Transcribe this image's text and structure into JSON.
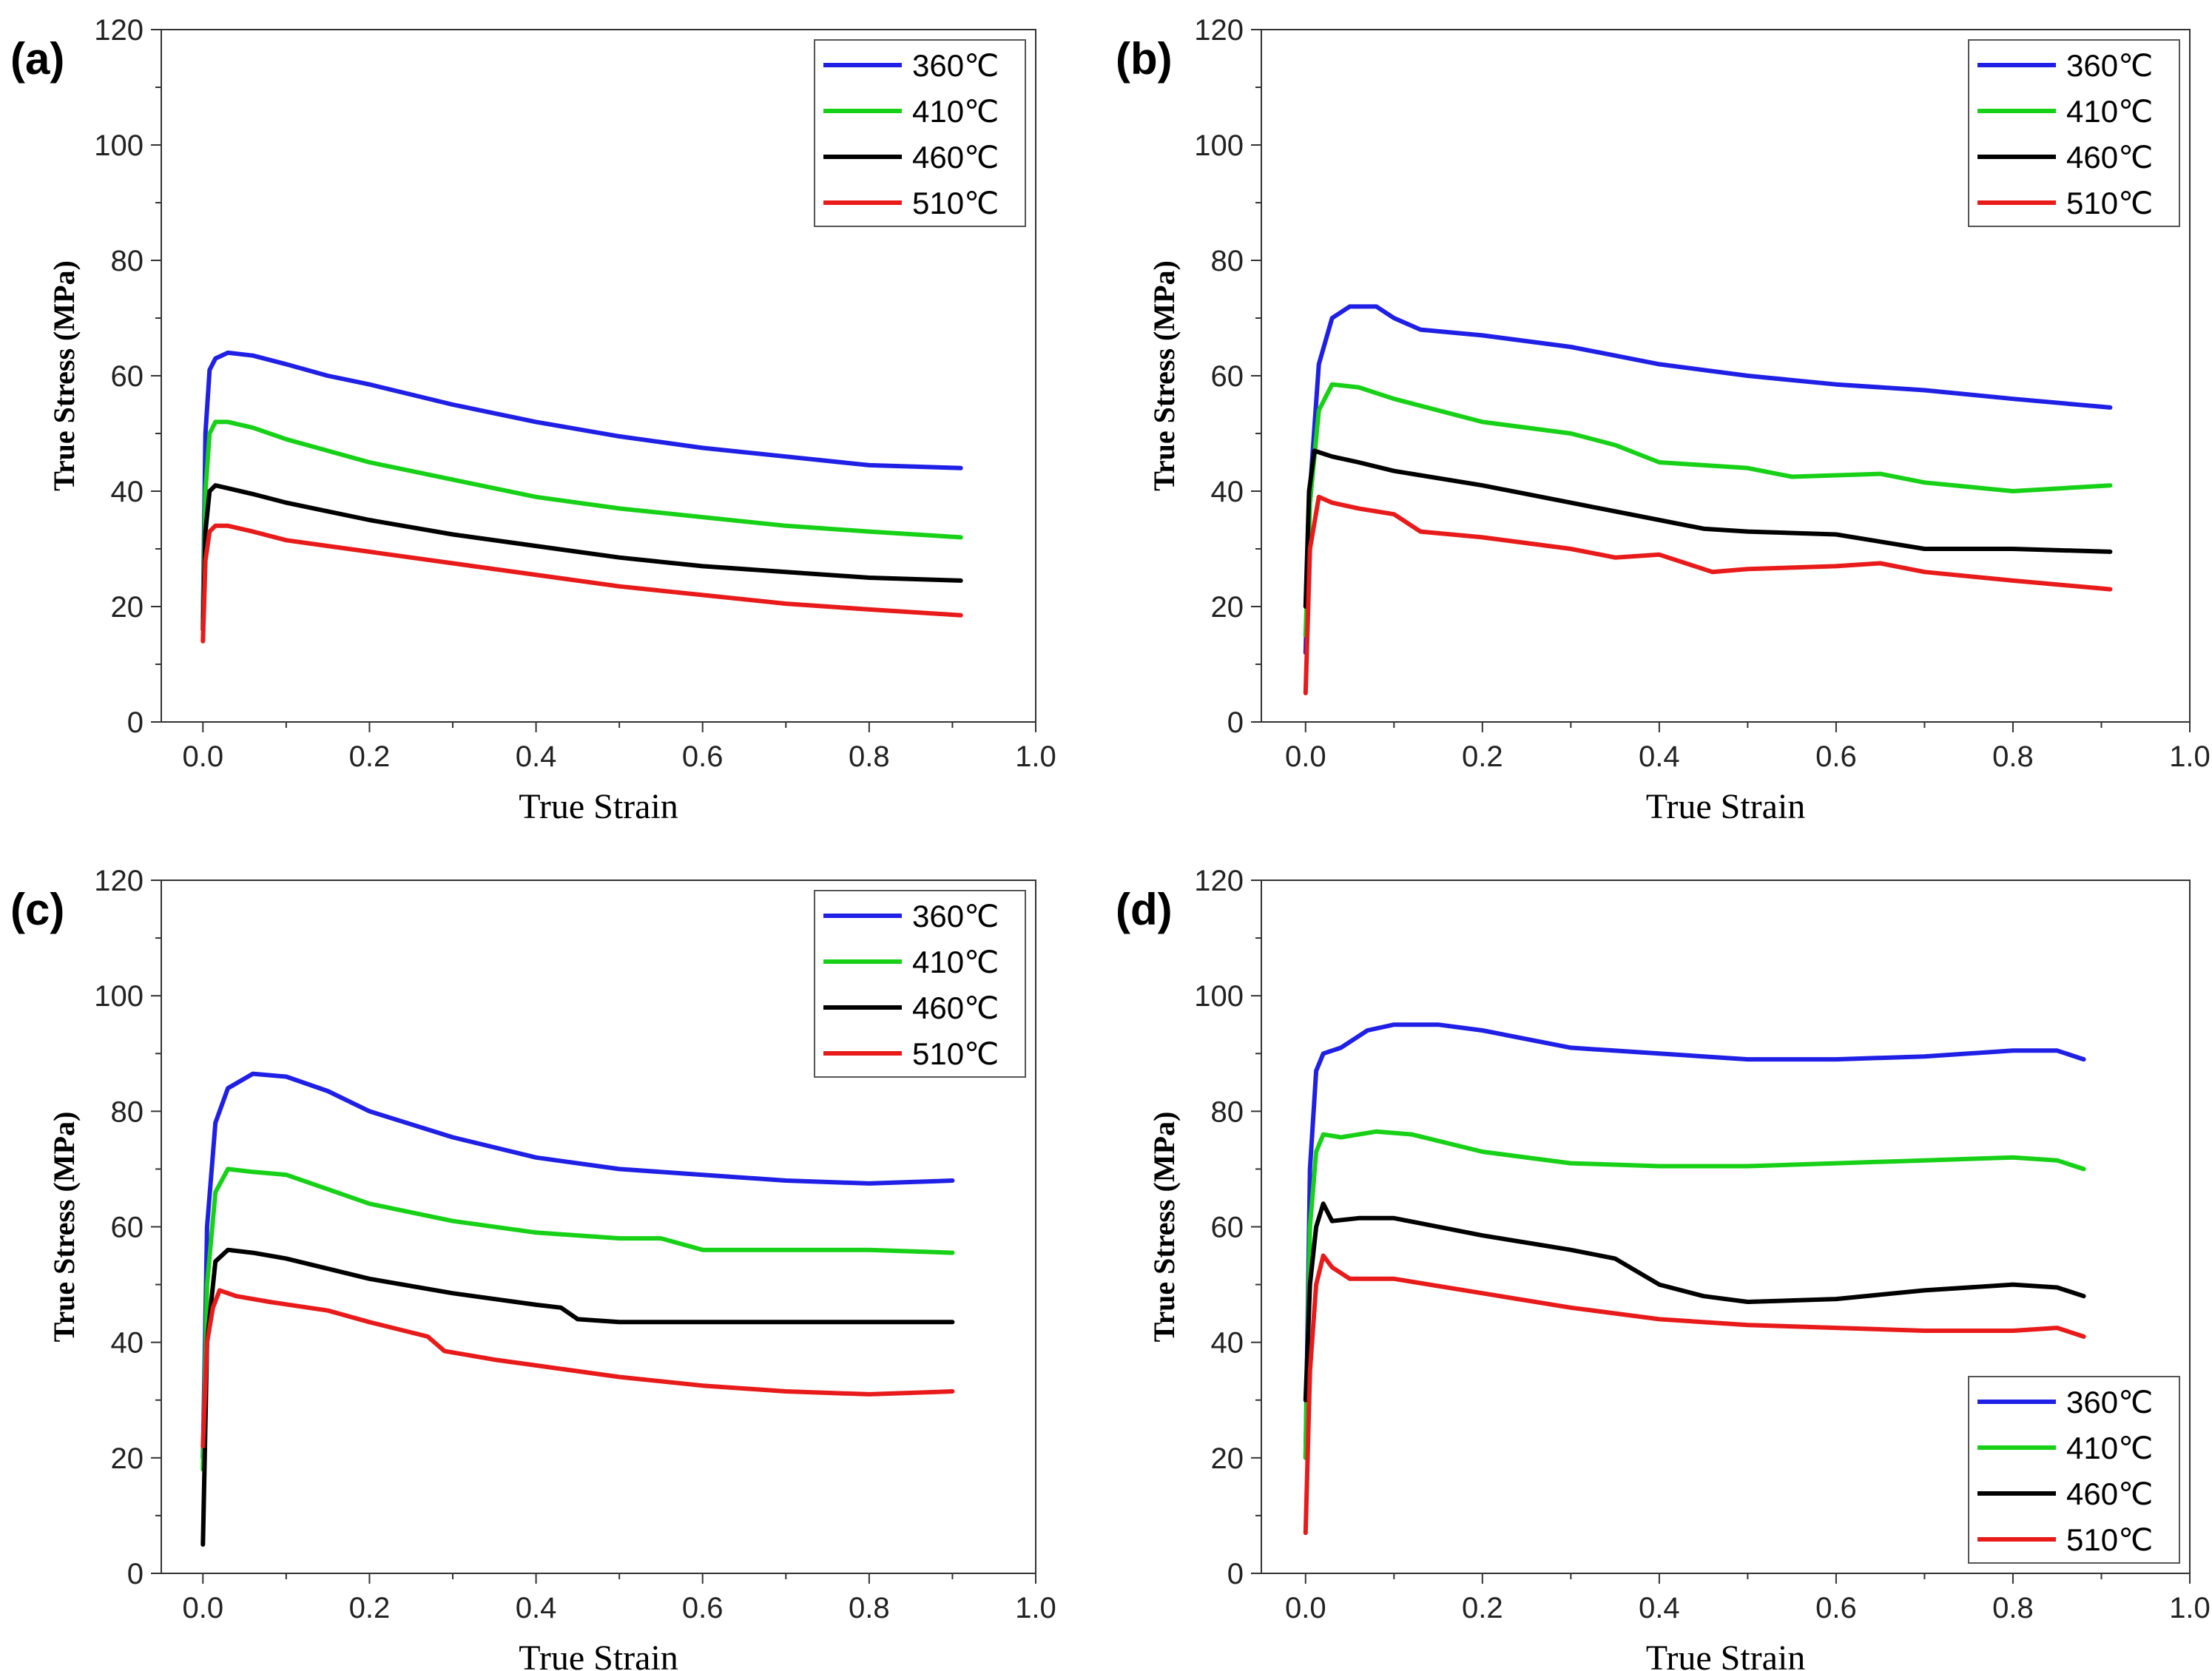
{
  "chart_data": [
    {
      "type": "line",
      "panel_label": "(a)",
      "xlabel": "True Strain",
      "ylabel": "True Stress (MPa)",
      "xlim": [
        -0.05,
        1.0
      ],
      "ylim": [
        0,
        120
      ],
      "xticks": [
        "0.0",
        "0.2",
        "0.4",
        "0.6",
        "0.8",
        "1.0"
      ],
      "yticks": [
        "0",
        "20",
        "40",
        "60",
        "80",
        "100",
        "120"
      ],
      "legend_position": "top-right",
      "series": [
        {
          "name": "360℃",
          "color": "#1f1fe6",
          "x": [
            0,
            0.003,
            0.008,
            0.015,
            0.03,
            0.06,
            0.1,
            0.15,
            0.2,
            0.3,
            0.4,
            0.5,
            0.6,
            0.7,
            0.8,
            0.91
          ],
          "y": [
            18,
            50,
            61,
            63,
            64,
            63.5,
            62,
            60,
            58.5,
            55,
            52,
            49.5,
            47.5,
            46,
            44.5,
            44
          ]
        },
        {
          "name": "410℃",
          "color": "#17d117",
          "x": [
            0,
            0.003,
            0.008,
            0.015,
            0.03,
            0.06,
            0.1,
            0.15,
            0.2,
            0.3,
            0.4,
            0.5,
            0.6,
            0.7,
            0.8,
            0.91
          ],
          "y": [
            17,
            40,
            50,
            52,
            52,
            51,
            49,
            47,
            45,
            42,
            39,
            37,
            35.5,
            34,
            33,
            32
          ]
        },
        {
          "name": "460℃",
          "color": "#000000",
          "x": [
            0,
            0.003,
            0.008,
            0.015,
            0.03,
            0.06,
            0.1,
            0.15,
            0.2,
            0.3,
            0.4,
            0.5,
            0.6,
            0.7,
            0.8,
            0.91
          ],
          "y": [
            16,
            33,
            40,
            41,
            40.5,
            39.5,
            38,
            36.5,
            35,
            32.5,
            30.5,
            28.5,
            27,
            26,
            25,
            24.5
          ]
        },
        {
          "name": "510℃",
          "color": "#e81a1a",
          "x": [
            0,
            0.003,
            0.008,
            0.015,
            0.03,
            0.06,
            0.1,
            0.15,
            0.2,
            0.3,
            0.4,
            0.5,
            0.6,
            0.7,
            0.8,
            0.91
          ],
          "y": [
            14,
            28,
            33,
            34,
            34,
            33,
            31.5,
            30.5,
            29.5,
            27.5,
            25.5,
            23.5,
            22,
            20.5,
            19.5,
            18.5
          ]
        }
      ]
    },
    {
      "type": "line",
      "panel_label": "(b)",
      "xlabel": "True Strain",
      "ylabel": "True Stress (MPa)",
      "xlim": [
        -0.05,
        1.0
      ],
      "ylim": [
        0,
        120
      ],
      "xticks": [
        "0.0",
        "0.2",
        "0.4",
        "0.6",
        "0.8",
        "1.0"
      ],
      "yticks": [
        "0",
        "20",
        "40",
        "60",
        "80",
        "100",
        "120"
      ],
      "legend_position": "top-right",
      "series": [
        {
          "name": "360℃",
          "color": "#1f1fe6",
          "x": [
            0,
            0.005,
            0.015,
            0.03,
            0.05,
            0.08,
            0.1,
            0.13,
            0.2,
            0.3,
            0.4,
            0.5,
            0.6,
            0.7,
            0.8,
            0.91
          ],
          "y": [
            12,
            40,
            62,
            70,
            72,
            72,
            70,
            68,
            67,
            65,
            62,
            60,
            58.5,
            57.5,
            56,
            54.5
          ]
        },
        {
          "name": "410℃",
          "color": "#17d117",
          "x": [
            0,
            0.005,
            0.015,
            0.03,
            0.06,
            0.1,
            0.2,
            0.3,
            0.35,
            0.4,
            0.45,
            0.5,
            0.55,
            0.65,
            0.7,
            0.8,
            0.91
          ],
          "y": [
            15,
            38,
            54,
            58.5,
            58,
            56,
            52,
            50,
            48,
            45,
            44.5,
            44,
            42.5,
            43,
            41.5,
            40,
            41
          ]
        },
        {
          "name": "460℃",
          "color": "#000000",
          "x": [
            0,
            0.004,
            0.01,
            0.03,
            0.06,
            0.1,
            0.2,
            0.3,
            0.4,
            0.45,
            0.5,
            0.6,
            0.7,
            0.8,
            0.91
          ],
          "y": [
            20,
            40,
            47,
            46,
            45,
            43.5,
            41,
            38,
            35,
            33.5,
            33,
            32.5,
            30,
            30,
            29.5
          ]
        },
        {
          "name": "510℃",
          "color": "#e81a1a",
          "x": [
            0,
            0.005,
            0.015,
            0.03,
            0.06,
            0.1,
            0.13,
            0.2,
            0.3,
            0.35,
            0.4,
            0.46,
            0.5,
            0.6,
            0.65,
            0.7,
            0.8,
            0.91
          ],
          "y": [
            5,
            30,
            39,
            38,
            37,
            36,
            33,
            32,
            30,
            28.5,
            29,
            26,
            26.5,
            27,
            27.5,
            26,
            24.5,
            23
          ]
        }
      ]
    },
    {
      "type": "line",
      "panel_label": "(c)",
      "xlabel": "True Strain",
      "ylabel": "True Stress (MPa)",
      "xlim": [
        -0.05,
        1.0
      ],
      "ylim": [
        0,
        120
      ],
      "xticks": [
        "0.0",
        "0.2",
        "0.4",
        "0.6",
        "0.8",
        "1.0"
      ],
      "yticks": [
        "0",
        "20",
        "40",
        "60",
        "80",
        "100",
        "120"
      ],
      "legend_position": "top-right",
      "series": [
        {
          "name": "360℃",
          "color": "#1f1fe6",
          "x": [
            0,
            0.005,
            0.015,
            0.03,
            0.06,
            0.1,
            0.15,
            0.2,
            0.3,
            0.4,
            0.5,
            0.6,
            0.7,
            0.8,
            0.9
          ],
          "y": [
            20,
            60,
            78,
            84,
            86.5,
            86,
            83.5,
            80,
            75.5,
            72,
            70,
            69,
            68,
            67.5,
            68
          ]
        },
        {
          "name": "410℃",
          "color": "#17d117",
          "x": [
            0,
            0.005,
            0.015,
            0.03,
            0.06,
            0.1,
            0.15,
            0.2,
            0.3,
            0.4,
            0.5,
            0.55,
            0.6,
            0.7,
            0.8,
            0.9
          ],
          "y": [
            18,
            50,
            66,
            70,
            69.5,
            69,
            66.5,
            64,
            61,
            59,
            58,
            58,
            56,
            56,
            56,
            55.5
          ]
        },
        {
          "name": "460℃",
          "color": "#000000",
          "x": [
            0,
            0.005,
            0.015,
            0.03,
            0.06,
            0.1,
            0.2,
            0.3,
            0.4,
            0.43,
            0.45,
            0.5,
            0.6,
            0.7,
            0.8,
            0.9
          ],
          "y": [
            5,
            40,
            54,
            56,
            55.5,
            54.5,
            51,
            48.5,
            46.5,
            46,
            44,
            43.5,
            43.5,
            43.5,
            43.5,
            43.5
          ]
        },
        {
          "name": "510℃",
          "color": "#e81a1a",
          "x": [
            0,
            0.005,
            0.012,
            0.02,
            0.04,
            0.08,
            0.15,
            0.2,
            0.27,
            0.29,
            0.35,
            0.4,
            0.5,
            0.6,
            0.7,
            0.8,
            0.9
          ],
          "y": [
            22,
            40,
            46,
            49,
            48,
            47,
            45.5,
            43.5,
            41,
            38.5,
            37,
            36,
            34,
            32.5,
            31.5,
            31,
            31.5
          ]
        }
      ]
    },
    {
      "type": "line",
      "panel_label": "(d)",
      "xlabel": "True Strain",
      "ylabel": "True Stress (MPa)",
      "xlim": [
        -0.05,
        1.0
      ],
      "ylim": [
        0,
        120
      ],
      "xticks": [
        "0.0",
        "0.2",
        "0.4",
        "0.6",
        "0.8",
        "1.0"
      ],
      "yticks": [
        "0",
        "20",
        "40",
        "60",
        "80",
        "100",
        "120"
      ],
      "legend_position": "bottom-right",
      "series": [
        {
          "name": "360℃",
          "color": "#1f1fe6",
          "x": [
            0,
            0.005,
            0.012,
            0.02,
            0.04,
            0.07,
            0.1,
            0.15,
            0.2,
            0.3,
            0.4,
            0.5,
            0.6,
            0.7,
            0.8,
            0.85,
            0.88
          ],
          "y": [
            20,
            70,
            87,
            90,
            91,
            94,
            95,
            95,
            94,
            91,
            90,
            89,
            89,
            89.5,
            90.5,
            90.5,
            89
          ]
        },
        {
          "name": "410℃",
          "color": "#17d117",
          "x": [
            0,
            0.005,
            0.012,
            0.02,
            0.04,
            0.08,
            0.12,
            0.2,
            0.3,
            0.4,
            0.5,
            0.6,
            0.7,
            0.8,
            0.85,
            0.88
          ],
          "y": [
            20,
            60,
            73,
            76,
            75.5,
            76.5,
            76,
            73,
            71,
            70.5,
            70.5,
            71,
            71.5,
            72,
            71.5,
            70
          ]
        },
        {
          "name": "460℃",
          "color": "#000000",
          "x": [
            0,
            0.005,
            0.012,
            0.02,
            0.03,
            0.06,
            0.1,
            0.2,
            0.3,
            0.35,
            0.4,
            0.45,
            0.5,
            0.6,
            0.7,
            0.8,
            0.85,
            0.88
          ],
          "y": [
            30,
            50,
            60,
            64,
            61,
            61.5,
            61.5,
            58.5,
            56,
            54.5,
            50,
            48,
            47,
            47.5,
            49,
            50,
            49.5,
            48
          ]
        },
        {
          "name": "510℃",
          "color": "#e81a1a",
          "x": [
            0,
            0.005,
            0.012,
            0.02,
            0.03,
            0.05,
            0.1,
            0.2,
            0.3,
            0.4,
            0.5,
            0.6,
            0.7,
            0.8,
            0.85,
            0.88
          ],
          "y": [
            7,
            35,
            50,
            55,
            53,
            51,
            51,
            48.5,
            46,
            44,
            43,
            42.5,
            42,
            42,
            42.5,
            41
          ]
        }
      ]
    }
  ]
}
